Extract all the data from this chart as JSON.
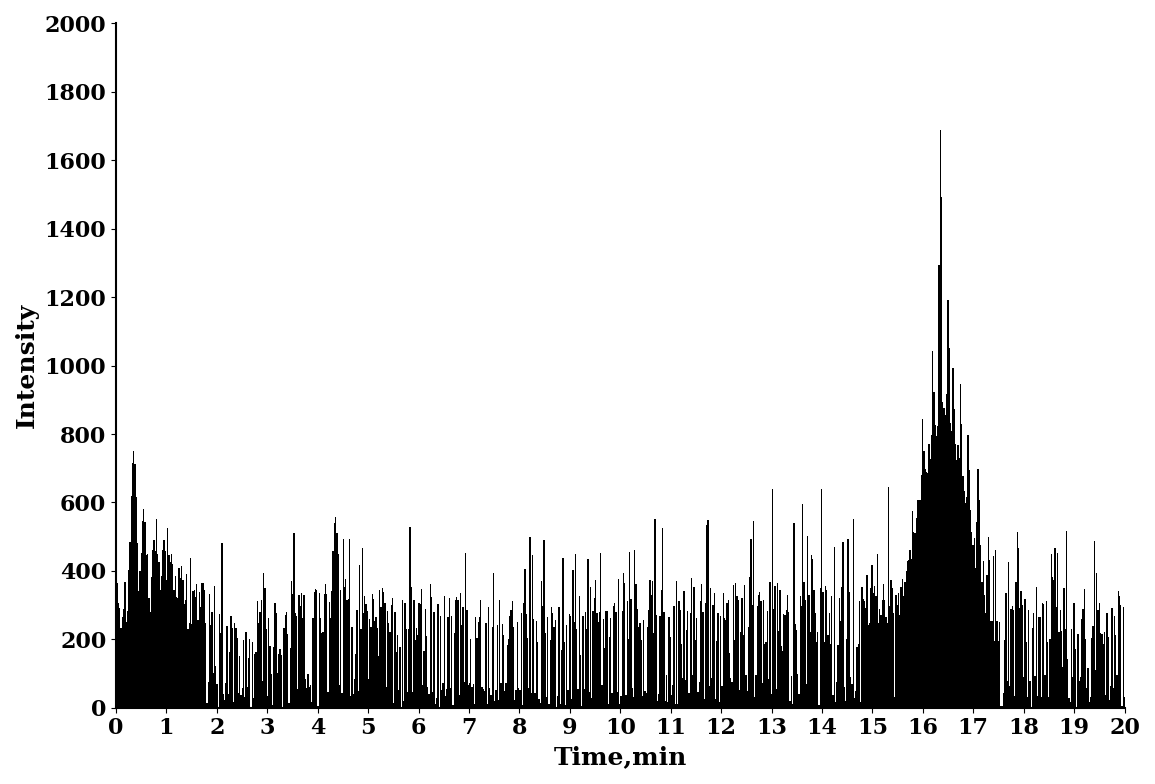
{
  "title": "",
  "xlabel": "Time,min",
  "ylabel": "Intensity",
  "xlim": [
    0,
    20
  ],
  "ylim": [
    0,
    2000
  ],
  "xticks": [
    0,
    1,
    2,
    3,
    4,
    5,
    6,
    7,
    8,
    9,
    10,
    11,
    12,
    13,
    14,
    15,
    16,
    17,
    18,
    19,
    20
  ],
  "yticks": [
    0,
    200,
    400,
    600,
    800,
    1000,
    1200,
    1400,
    1600,
    1800,
    2000
  ],
  "line_color": "#000000",
  "background_color": "#ffffff",
  "xlabel_fontsize": 18,
  "ylabel_fontsize": 18,
  "tick_fontsize": 16,
  "seed": 42
}
